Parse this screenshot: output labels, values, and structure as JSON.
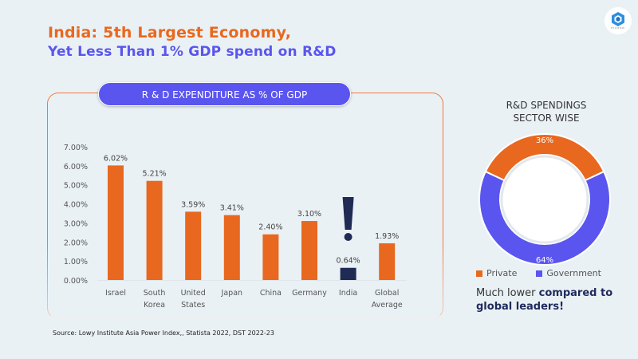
{
  "header": {
    "title_line1": "India: 5th Largest Economy,",
    "title_line2": "Yet Less Than 1% GDP spend on R&D",
    "logo_text": "PIXXON"
  },
  "colors": {
    "orange": "#e8681f",
    "purple": "#5a55ee",
    "navy": "#1f2a55",
    "background": "#eaf1f5"
  },
  "chart_data": [
    {
      "type": "bar",
      "title": "R & D EXPENDITURE AS % OF GDP",
      "categories": [
        "Israel",
        "South Korea",
        "United States",
        "Japan",
        "China",
        "Germany",
        "India",
        "Global Average"
      ],
      "category_lines": [
        [
          "Israel"
        ],
        [
          "South",
          "Korea"
        ],
        [
          "United",
          "States"
        ],
        [
          "Japan"
        ],
        [
          "China"
        ],
        [
          "Germany"
        ],
        [
          "India"
        ],
        [
          "Global",
          "Average"
        ]
      ],
      "values": [
        6.02,
        5.21,
        3.59,
        3.41,
        2.4,
        3.1,
        0.64,
        1.93
      ],
      "data_labels": [
        "6.02%",
        "5.21%",
        "3.59%",
        "3.41%",
        "2.40%",
        "3.10%",
        "0.64%",
        "1.93%"
      ],
      "highlight": "India",
      "highlight_annotation": "!",
      "xlabel": "",
      "ylabel": "",
      "ylim": [
        0,
        7
      ],
      "yticks": [
        0,
        1,
        2,
        3,
        4,
        5,
        6,
        7
      ],
      "ytick_labels": [
        "0.00%",
        "1.00%",
        "2.00%",
        "3.00%",
        "4.00%",
        "5.00%",
        "6.00%",
        "7.00%"
      ],
      "grid": false
    },
    {
      "type": "pie",
      "title": "R&D SPENDINGS SECTOR WISE",
      "title_lines": [
        "R&D SPENDINGS",
        "SECTOR WISE"
      ],
      "donut": true,
      "labels": [
        "Private",
        "Government"
      ],
      "values": [
        36,
        64
      ],
      "data_labels": [
        "36%",
        "64%"
      ],
      "legend": "bottom"
    }
  ],
  "note": {
    "plain": "Much lower ",
    "bold": "compared to global leaders!"
  },
  "source": "Source: Lowy Institute Asia Power Index,, Statista 2022, DST 2022-23"
}
